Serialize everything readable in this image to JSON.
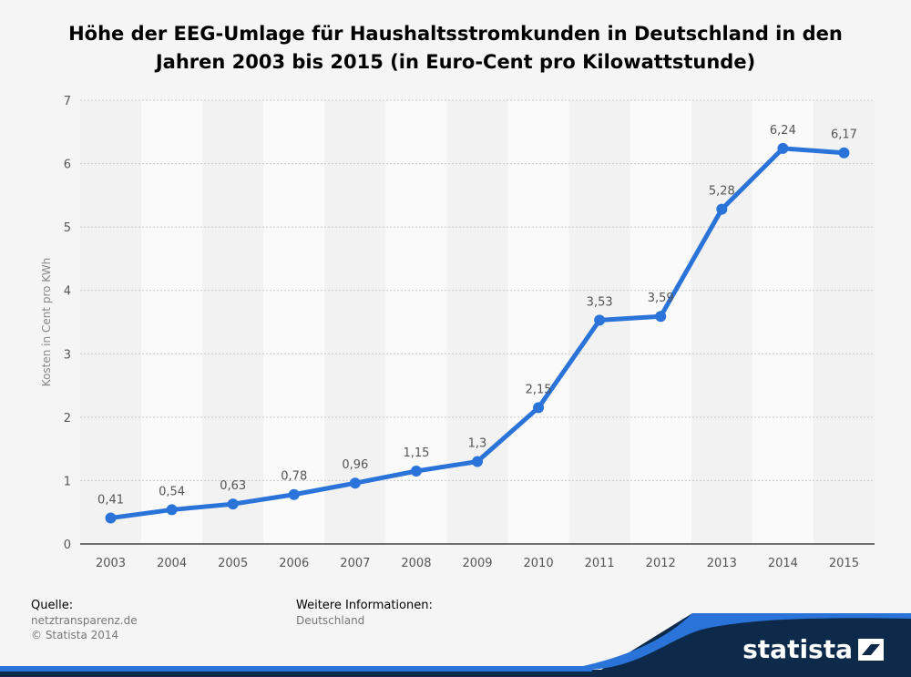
{
  "title": "Höhe der EEG-Umlage für Haushaltsstromkunden in Deutschland in den Jahren 2003 bis 2015 (in Euro-Cent pro Kilowattstunde)",
  "footer": {
    "source_heading": "Quelle:",
    "source_line1": "netztransparenz.de",
    "source_line2": "© Statista 2014",
    "info_heading": "Weitere Informationen:",
    "info_line1": "Deutschland"
  },
  "brand": {
    "name": "statista",
    "bar_color": "#2a73d9",
    "dark_color": "#0d2a4a"
  },
  "chart_data": {
    "type": "line",
    "title": "Höhe der EEG-Umlage für Haushaltsstromkunden in Deutschland in den Jahren 2003 bis 2015 (in Euro-Cent pro Kilowattstunde)",
    "xlabel": "",
    "ylabel": "Kosten in Cent pro KWh",
    "categories": [
      "2003",
      "2004",
      "2005",
      "2006",
      "2007",
      "2008",
      "2009",
      "2010",
      "2011",
      "2012",
      "2013",
      "2014",
      "2015"
    ],
    "series": [
      {
        "values": [
          0.41,
          0.54,
          0.63,
          0.78,
          0.96,
          1.15,
          1.3,
          2.15,
          3.53,
          3.59,
          5.28,
          6.24,
          6.17
        ],
        "labels": [
          "0,41",
          "0,54",
          "0,63",
          "0,78",
          "0,96",
          "1,15",
          "1,3",
          "2,15",
          "3,53",
          "3,59",
          "5,28",
          "6,24",
          "6,17"
        ],
        "color": "#2a73d9"
      }
    ],
    "ylim": [
      0,
      7
    ],
    "yticks": [
      "0",
      "1",
      "2",
      "3",
      "4",
      "5",
      "6",
      "7"
    ],
    "grid": true,
    "legend": "none"
  }
}
